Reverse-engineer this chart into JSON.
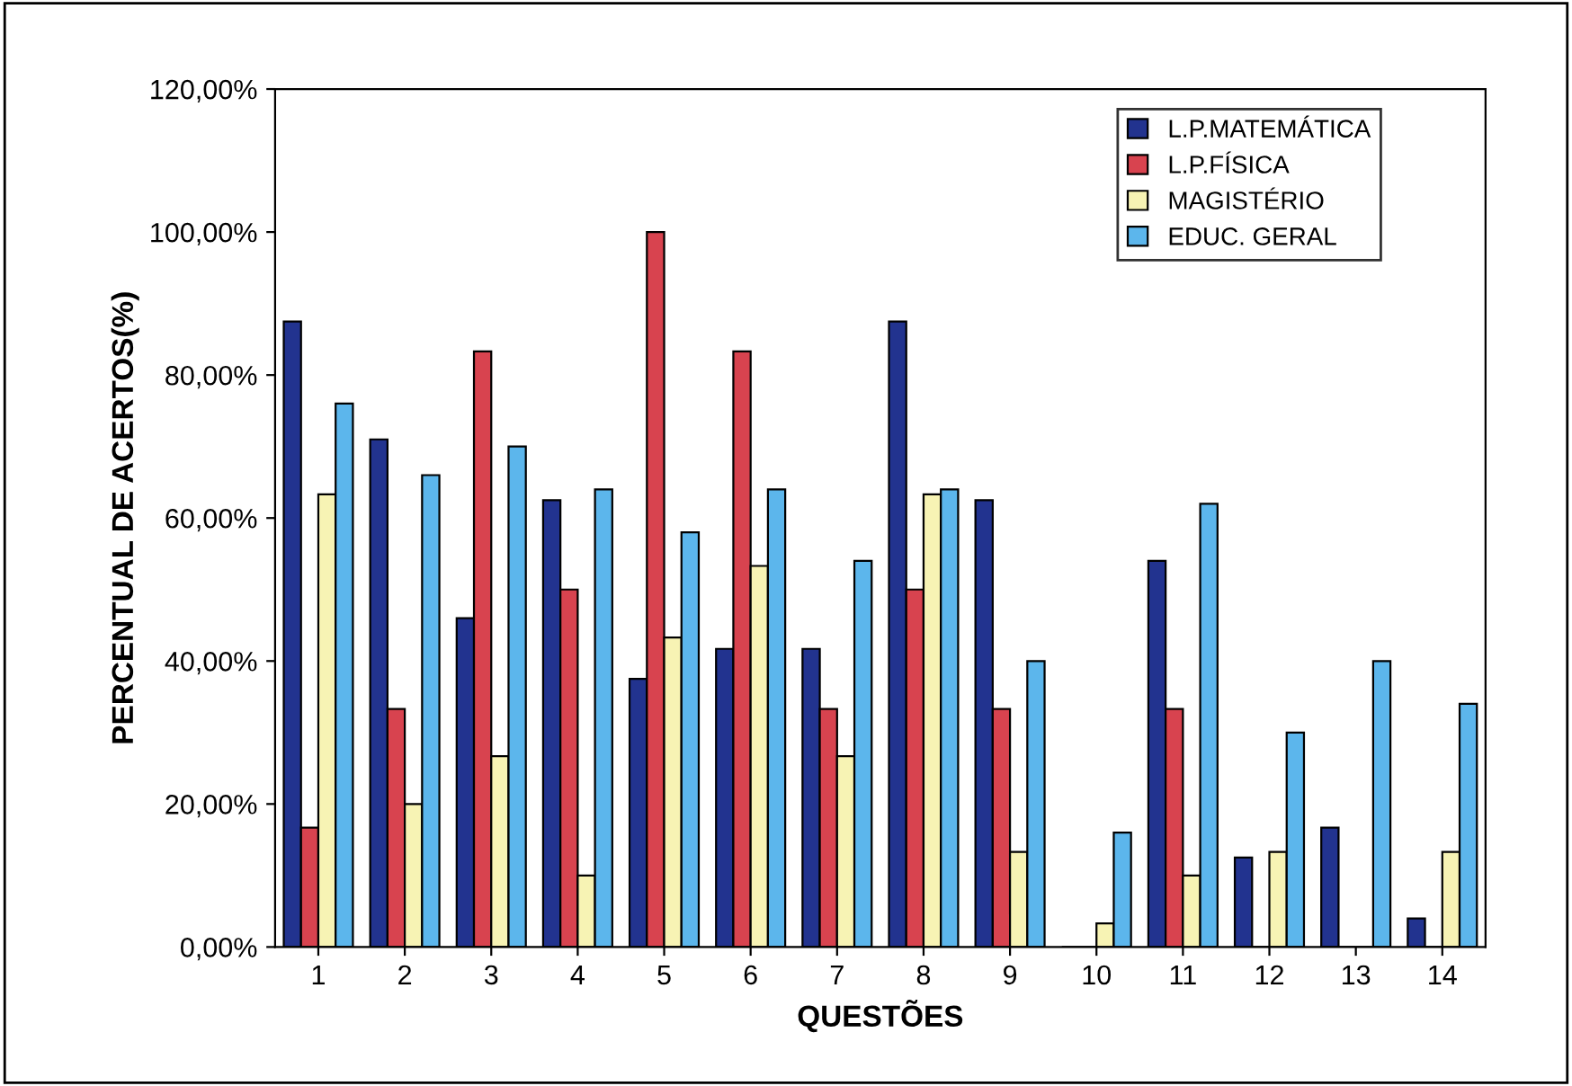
{
  "chart_data": {
    "type": "bar",
    "xlabel": "QUESTÕES",
    "ylabel": "PERCENTUAL DE ACERTOS(%)",
    "categories": [
      "1",
      "2",
      "3",
      "4",
      "5",
      "6",
      "7",
      "8",
      "9",
      "10",
      "11",
      "12",
      "13",
      "14"
    ],
    "series": [
      {
        "name": "L.P.MATEMÁTICA",
        "color": "#22338f",
        "values": [
          87.5,
          71,
          46,
          62.5,
          37.5,
          41.7,
          41.7,
          87.5,
          62.5,
          0,
          54,
          12.5,
          16.7,
          4
        ]
      },
      {
        "name": "L.P.FÍSICA",
        "color": "#d8434f",
        "values": [
          16.7,
          33.3,
          83.3,
          50,
          100,
          83.3,
          33.3,
          50,
          33.3,
          0,
          33.3,
          0,
          0,
          0
        ]
      },
      {
        "name": "MAGISTÉRIO",
        "color": "#f7f3b4",
        "values": [
          63.3,
          20,
          26.7,
          10,
          43.3,
          53.3,
          26.7,
          63.3,
          13.3,
          3.3,
          10,
          13.3,
          0,
          13.3
        ]
      },
      {
        "name": "EDUC. GERAL",
        "color": "#5cb6ec",
        "values": [
          76,
          66,
          70,
          64,
          58,
          64,
          54,
          64,
          40,
          16,
          62,
          30,
          40,
          34
        ]
      }
    ],
    "ylim": [
      0,
      120
    ],
    "yticks": [
      {
        "value": 0,
        "label": "0,00%"
      },
      {
        "value": 20,
        "label": "20,00%"
      },
      {
        "value": 40,
        "label": "40,00%"
      },
      {
        "value": 60,
        "label": "60,00%"
      },
      {
        "value": 80,
        "label": "80,00%"
      },
      {
        "value": 100,
        "label": "100,00%"
      },
      {
        "value": 120,
        "label": "120,00%"
      }
    ],
    "legend": "top right",
    "grid": false
  }
}
